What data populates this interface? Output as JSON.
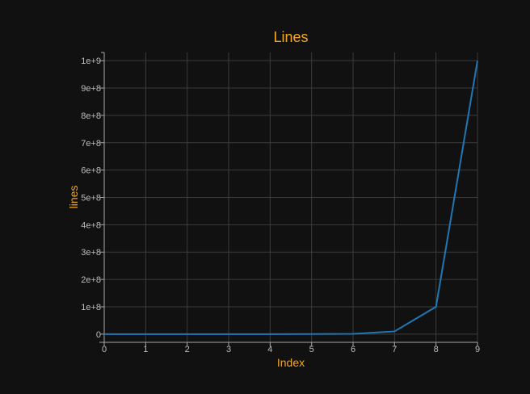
{
  "chart_data": {
    "type": "line",
    "title": "Lines",
    "xlabel": "Index",
    "ylabel": "lines",
    "x": [
      0,
      1,
      2,
      3,
      4,
      5,
      6,
      7,
      8,
      9
    ],
    "series": [
      {
        "values": [
          1,
          10,
          100,
          1000,
          10000,
          100000,
          1000000,
          10000000,
          100000000,
          1000000000
        ]
      }
    ],
    "xlim": [
      0,
      9
    ],
    "ylim": [
      -30000000,
      1030000000
    ],
    "x_ticks": [
      "0",
      "1",
      "2",
      "3",
      "4",
      "5",
      "6",
      "7",
      "8",
      "9"
    ],
    "y_ticks": [
      {
        "value": 0,
        "label": "0"
      },
      {
        "value": 100000000,
        "label": "1e+8"
      },
      {
        "value": 200000000,
        "label": "2e+8"
      },
      {
        "value": 300000000,
        "label": "3e+8"
      },
      {
        "value": 400000000,
        "label": "4e+8"
      },
      {
        "value": 500000000,
        "label": "5e+8"
      },
      {
        "value": 600000000,
        "label": "6e+8"
      },
      {
        "value": 700000000,
        "label": "7e+8"
      },
      {
        "value": 800000000,
        "label": "8e+8"
      },
      {
        "value": 900000000,
        "label": "9e+8"
      },
      {
        "value": 1000000000,
        "label": "1e+9"
      }
    ],
    "grid": true,
    "legend": "none",
    "colors": {
      "background": "#111111",
      "series": "#1f77b4",
      "title": "#f5a623",
      "axis_label": "#f5a623",
      "tick_label": "#bdbdbd",
      "grid": "#3c3c3c"
    }
  }
}
